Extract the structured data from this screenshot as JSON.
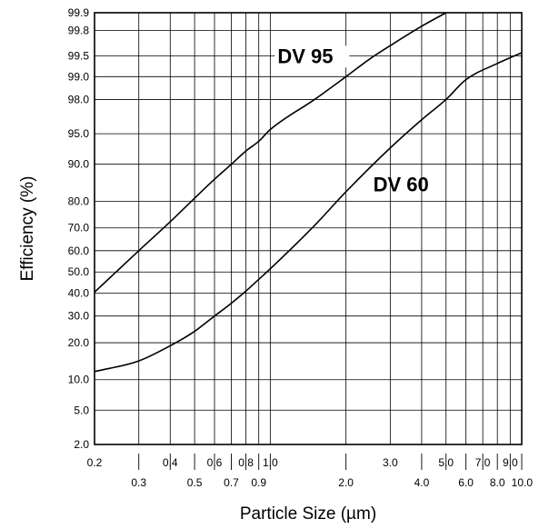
{
  "chart_data": {
    "type": "line",
    "title": "",
    "xlabel": "Particle Size (µm)",
    "ylabel": "Efficiency (%)",
    "xscale": "log",
    "yscale": "probability",
    "xlim": [
      0.2,
      10.0
    ],
    "ylim": [
      2.0,
      99.9
    ],
    "grid": true,
    "x_ticks": [
      {
        "value": 0.2,
        "label": "0.2",
        "row": 1,
        "tick": false
      },
      {
        "value": 0.3,
        "label": "0.3",
        "row": 2,
        "tick": true
      },
      {
        "value": 0.4,
        "label": "0.4",
        "row": 1,
        "tick": true
      },
      {
        "value": 0.5,
        "label": "0.5",
        "row": 2,
        "tick": true
      },
      {
        "value": 0.6,
        "label": "0.6",
        "row": 1,
        "tick": true
      },
      {
        "value": 0.7,
        "label": "0.7",
        "row": 2,
        "tick": true
      },
      {
        "value": 0.8,
        "label": "0.8",
        "row": 1,
        "tick": true
      },
      {
        "value": 0.9,
        "label": "0.9",
        "row": 2,
        "tick": true
      },
      {
        "value": 1.0,
        "label": "1.0",
        "row": 1,
        "tick": true
      },
      {
        "value": 2.0,
        "label": "2.0",
        "row": 2,
        "tick": true
      },
      {
        "value": 3.0,
        "label": "3.0",
        "row": 1,
        "tick": false
      },
      {
        "value": 4.0,
        "label": "4.0",
        "row": 2,
        "tick": true
      },
      {
        "value": 5.0,
        "label": "5.0",
        "row": 1,
        "tick": true
      },
      {
        "value": 6.0,
        "label": "6.0",
        "row": 2,
        "tick": true
      },
      {
        "value": 7.0,
        "label": "7.0",
        "row": 1,
        "tick": true
      },
      {
        "value": 8.0,
        "label": "8.0",
        "row": 2,
        "tick": true
      },
      {
        "value": 9.0,
        "label": "9.0",
        "row": 1,
        "tick": true
      },
      {
        "value": 10.0,
        "label": "10.0",
        "row": 2,
        "tick": true
      }
    ],
    "y_ticks": [
      {
        "value": 99.9,
        "label": "99.9"
      },
      {
        "value": 99.8,
        "label": "99.8"
      },
      {
        "value": 99.5,
        "label": "99.5"
      },
      {
        "value": 99.0,
        "label": "99.0"
      },
      {
        "value": 98.0,
        "label": "98.0"
      },
      {
        "value": 95.0,
        "label": "95.0"
      },
      {
        "value": 90.0,
        "label": "90.0"
      },
      {
        "value": 80.0,
        "label": "80.0"
      },
      {
        "value": 70.0,
        "label": "70.0"
      },
      {
        "value": 60.0,
        "label": "60.0"
      },
      {
        "value": 50.0,
        "label": "50.0"
      },
      {
        "value": 40.0,
        "label": "40.0"
      },
      {
        "value": 30.0,
        "label": "30.0"
      },
      {
        "value": 20.0,
        "label": "20.0"
      },
      {
        "value": 10.0,
        "label": "10.0"
      },
      {
        "value": 5.0,
        "label": "5.0"
      },
      {
        "value": 2.0,
        "label": "2.0"
      }
    ],
    "series": [
      {
        "name": "DV 95",
        "x": [
          0.2,
          0.3,
          0.4,
          0.5,
          0.6,
          0.7,
          0.8,
          0.9,
          1.0,
          1.5,
          2.0,
          2.5,
          3.0,
          4.0,
          5.0
        ],
        "y": [
          40.5,
          60.0,
          72.5,
          81.0,
          86.5,
          90.0,
          92.5,
          94.0,
          95.5,
          98.0,
          99.0,
          99.45,
          99.65,
          99.83,
          99.9
        ]
      },
      {
        "name": "DV 60",
        "x": [
          0.2,
          0.3,
          0.4,
          0.5,
          0.6,
          0.7,
          0.8,
          0.9,
          1.0,
          1.5,
          2.0,
          3.0,
          4.0,
          5.0,
          6.0,
          8.0,
          10.0
        ],
        "y": [
          11.8,
          14.5,
          19.0,
          24.0,
          30.0,
          35.5,
          41.0,
          46.5,
          51.5,
          71.0,
          83.0,
          93.0,
          96.5,
          98.0,
          98.9,
          99.35,
          99.55
        ]
      }
    ]
  }
}
